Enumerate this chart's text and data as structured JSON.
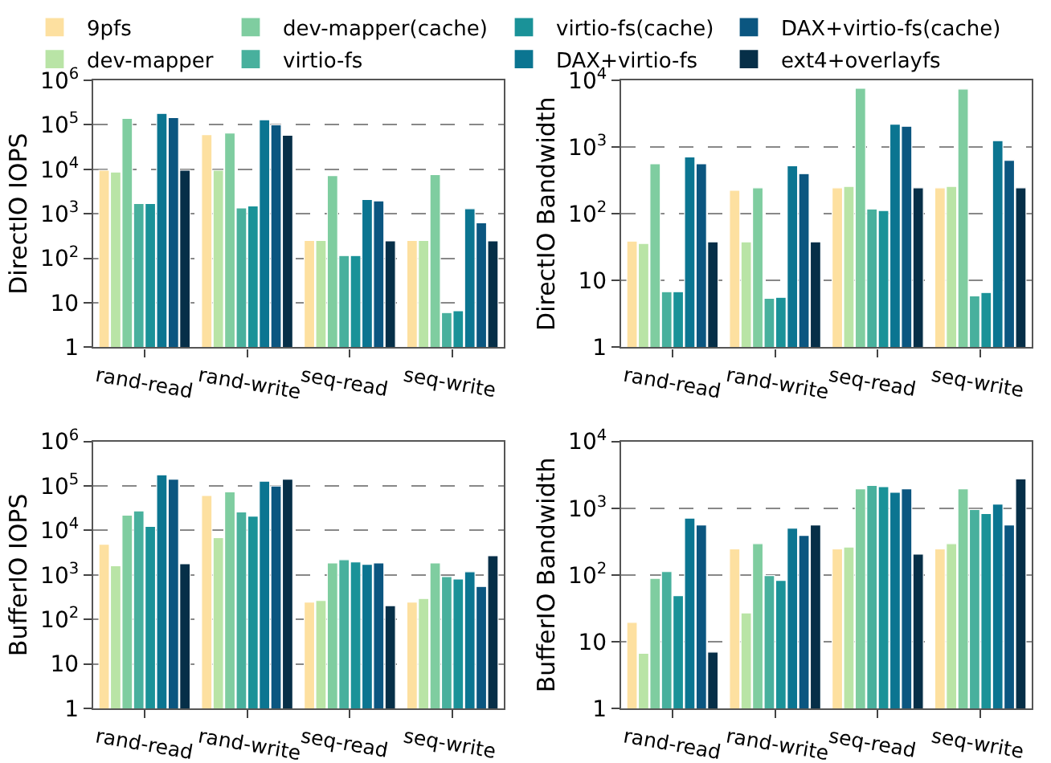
{
  "chart_data": [
    {
      "type": "bar",
      "ylabel": "DirectIO IOPS",
      "categories": [
        "rand-read",
        "rand-write",
        "seq-read",
        "seq-write"
      ],
      "log": true,
      "grid": "y",
      "legend": "top",
      "ylim": [
        1,
        1000000
      ],
      "yticks": [
        1,
        10,
        {
          "value": 100,
          "label": "10$^{2}$"
        },
        {
          "value": 1000,
          "label": "10$^{3}$"
        },
        {
          "value": 10000,
          "label": "10$^{4}$"
        },
        {
          "value": 100000,
          "label": "10$^{5}$"
        },
        {
          "value": 1000000,
          "label": "10$^{6}$"
        }
      ],
      "series": [
        {
          "name": "9pfs",
          "color": "#fde0a0",
          "values": [
            9500,
            60000,
            250,
            250
          ]
        },
        {
          "name": "dev-mapper",
          "color": "#b9e4a6",
          "values": [
            8700,
            9500,
            250,
            250
          ]
        },
        {
          "name": "dev-mapper(cache)",
          "color": "#7fcda0",
          "values": [
            140000,
            65000,
            7200,
            7600
          ]
        },
        {
          "name": "virtio-fs",
          "color": "#48b09d",
          "values": [
            1700,
            1350,
            115,
            6
          ]
        },
        {
          "name": "virtio-fs(cache)",
          "color": "#1a9298",
          "values": [
            1700,
            1500,
            115,
            6.6
          ]
        },
        {
          "name": "DAX+virtio-fs",
          "color": "#0b7591",
          "values": [
            180000,
            130000,
            2100,
            1300
          ]
        },
        {
          "name": "DAX+virtio-fs(cache)",
          "color": "#0b5680",
          "values": [
            145000,
            100000,
            1950,
            630
          ]
        },
        {
          "name": "ext4+overlayfs",
          "color": "#062f48",
          "values": [
            9500,
            58000,
            245,
            245
          ]
        }
      ]
    },
    {
      "type": "bar",
      "ylabel": "DirectIO Bandwidth",
      "categories": [
        "rand-read",
        "rand-write",
        "seq-read",
        "seq-write"
      ],
      "log": true,
      "grid": "y",
      "ylim": [
        1,
        10000
      ],
      "yticks": [
        1,
        10,
        {
          "value": 100,
          "label": "10$^{2}$"
        },
        {
          "value": 1000,
          "label": "10$^{3}$"
        },
        {
          "value": 10000,
          "label": "10$^{4}$"
        }
      ],
      "series": [
        {
          "color": "#fde0a0",
          "values": [
            39,
            225,
            245,
            245
          ]
        },
        {
          "color": "#b9e4a6",
          "values": [
            36,
            38,
            257,
            257
          ]
        },
        {
          "color": "#7fcda0",
          "values": [
            560,
            245,
            7600,
            7400
          ]
        },
        {
          "color": "#48b09d",
          "values": [
            6.8,
            5.4,
            118,
            5.9
          ]
        },
        {
          "color": "#1a9298",
          "values": [
            6.8,
            5.6,
            112,
            6.6
          ]
        },
        {
          "color": "#0b7591",
          "values": [
            710,
            525,
            2200,
            1250
          ]
        },
        {
          "color": "#0b5680",
          "values": [
            560,
            400,
            2050,
            630
          ]
        },
        {
          "color": "#062f48",
          "values": [
            38,
            38,
            245,
            245
          ]
        }
      ]
    },
    {
      "type": "bar",
      "ylabel": "BufferIO IOPS",
      "categories": [
        "rand-read",
        "rand-write",
        "seq-read",
        "seq-write"
      ],
      "log": true,
      "grid": "y",
      "ylim": [
        1,
        1000000
      ],
      "yticks": [
        1,
        10,
        {
          "value": 100,
          "label": "10$^{2}$"
        },
        {
          "value": 1000,
          "label": "10$^{3}$"
        },
        {
          "value": 10000,
          "label": "10$^{4}$"
        },
        {
          "value": 100000,
          "label": "10$^{5}$"
        },
        {
          "value": 1000000,
          "label": "10$^{6}$"
        }
      ],
      "series": [
        {
          "color": "#fde0a0",
          "values": [
            4900,
            61000,
            245,
            245
          ]
        },
        {
          "color": "#b9e4a6",
          "values": [
            1600,
            6900,
            265,
            295
          ]
        },
        {
          "color": "#7fcda0",
          "values": [
            22000,
            74000,
            1860,
            1860
          ]
        },
        {
          "color": "#48b09d",
          "values": [
            27500,
            26000,
            2200,
            920
          ]
        },
        {
          "color": "#1a9298",
          "values": [
            12300,
            21000,
            1950,
            810
          ]
        },
        {
          "color": "#0b7591",
          "values": [
            178000,
            128000,
            1730,
            1180
          ]
        },
        {
          "color": "#0b5680",
          "values": [
            142000,
            100000,
            1860,
            550
          ]
        },
        {
          "color": "#062f48",
          "values": [
            1780,
            142000,
            204,
            2700
          ]
        }
      ]
    },
    {
      "type": "bar",
      "ylabel": "BufferIO Bandwidth",
      "categories": [
        "rand-read",
        "rand-write",
        "seq-read",
        "seq-write"
      ],
      "log": true,
      "grid": "y",
      "ylim": [
        1,
        10000
      ],
      "yticks": [
        1,
        10,
        {
          "value": 100,
          "label": "10$^{2}$"
        },
        {
          "value": 1000,
          "label": "10$^{3}$"
        },
        {
          "value": 10000,
          "label": "10$^{4}$"
        }
      ],
      "series": [
        {
          "color": "#fde0a0",
          "values": [
            19.5,
            245,
            245,
            245
          ]
        },
        {
          "color": "#b9e4a6",
          "values": [
            6.7,
            27,
            262,
            295
          ]
        },
        {
          "color": "#7fcda0",
          "values": [
            89,
            295,
            1950,
            1950
          ]
        },
        {
          "color": "#48b09d",
          "values": [
            112,
            98,
            2200,
            955
          ]
        },
        {
          "color": "#1a9298",
          "values": [
            49,
            83,
            2100,
            830
          ]
        },
        {
          "color": "#0b7591",
          "values": [
            710,
            500,
            1730,
            1150
          ]
        },
        {
          "color": "#0b5680",
          "values": [
            560,
            390,
            1950,
            560
          ]
        },
        {
          "color": "#062f48",
          "values": [
            7.0,
            560,
            205,
            2750
          ]
        }
      ]
    }
  ]
}
